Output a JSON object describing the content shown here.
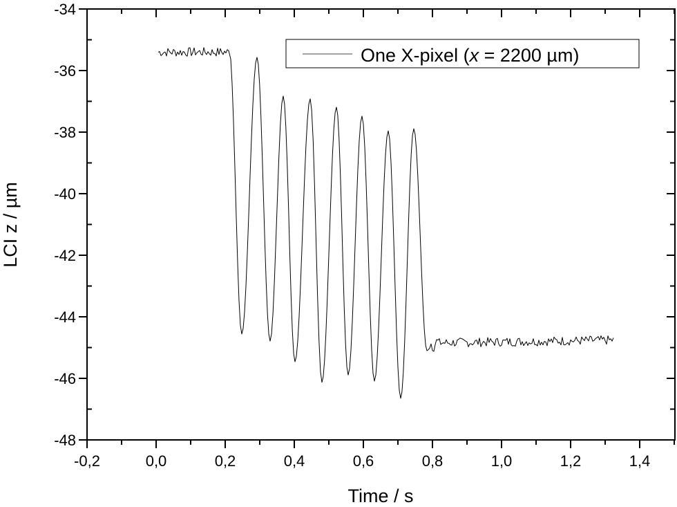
{
  "chart_data": {
    "type": "line",
    "title": "",
    "xlabel": "Time / s",
    "ylabel": "LCI z / µm",
    "xlim": [
      -0.2,
      1.5
    ],
    "ylim": [
      -48,
      -34
    ],
    "grid": false,
    "legend_position": "top-right (inside)",
    "x_ticks": [
      "-0,2",
      "0,0",
      "0,2",
      "0,4",
      "0,6",
      "0,8",
      "1,0",
      "1,2",
      "1,4"
    ],
    "x_tick_values": [
      -0.2,
      0.0,
      0.2,
      0.4,
      0.6,
      0.8,
      1.0,
      1.2,
      1.4
    ],
    "y_ticks": [
      "-34",
      "-36",
      "-38",
      "-40",
      "-42",
      "-44",
      "-46",
      "-48"
    ],
    "y_tick_values": [
      -34,
      -36,
      -38,
      -40,
      -42,
      -44,
      -46,
      -48
    ],
    "series": [
      {
        "name": "One X-pixel (x = 2200 µm)",
        "color": "#000000",
        "baseline_before": {
          "t_start": 0.006,
          "t_end": 0.212,
          "z_mean": -35.5,
          "noise": 0.15
        },
        "peaks": [
          {
            "t": 0.292,
            "z": -35.57
          },
          {
            "t": 0.368,
            "z": -36.83
          },
          {
            "t": 0.446,
            "z": -36.92
          },
          {
            "t": 0.522,
            "z": -37.19
          },
          {
            "t": 0.596,
            "z": -37.48
          },
          {
            "t": 0.672,
            "z": -37.96
          },
          {
            "t": 0.746,
            "z": -37.89
          }
        ],
        "troughs": [
          {
            "t": 0.248,
            "z": -44.56
          },
          {
            "t": 0.33,
            "z": -44.79
          },
          {
            "t": 0.402,
            "z": -45.46
          },
          {
            "t": 0.48,
            "z": -46.13
          },
          {
            "t": 0.556,
            "z": -45.89
          },
          {
            "t": 0.632,
            "z": -46.09
          },
          {
            "t": 0.708,
            "z": -46.65
          }
        ],
        "baseline_after": {
          "t_start": 0.784,
          "t_end": 1.326,
          "z_mean": -44.85,
          "noise": 0.15
        }
      }
    ]
  },
  "legend": {
    "prefix": "One X-pixel (",
    "var": "x",
    "suffix": " = 2200 µm)"
  }
}
